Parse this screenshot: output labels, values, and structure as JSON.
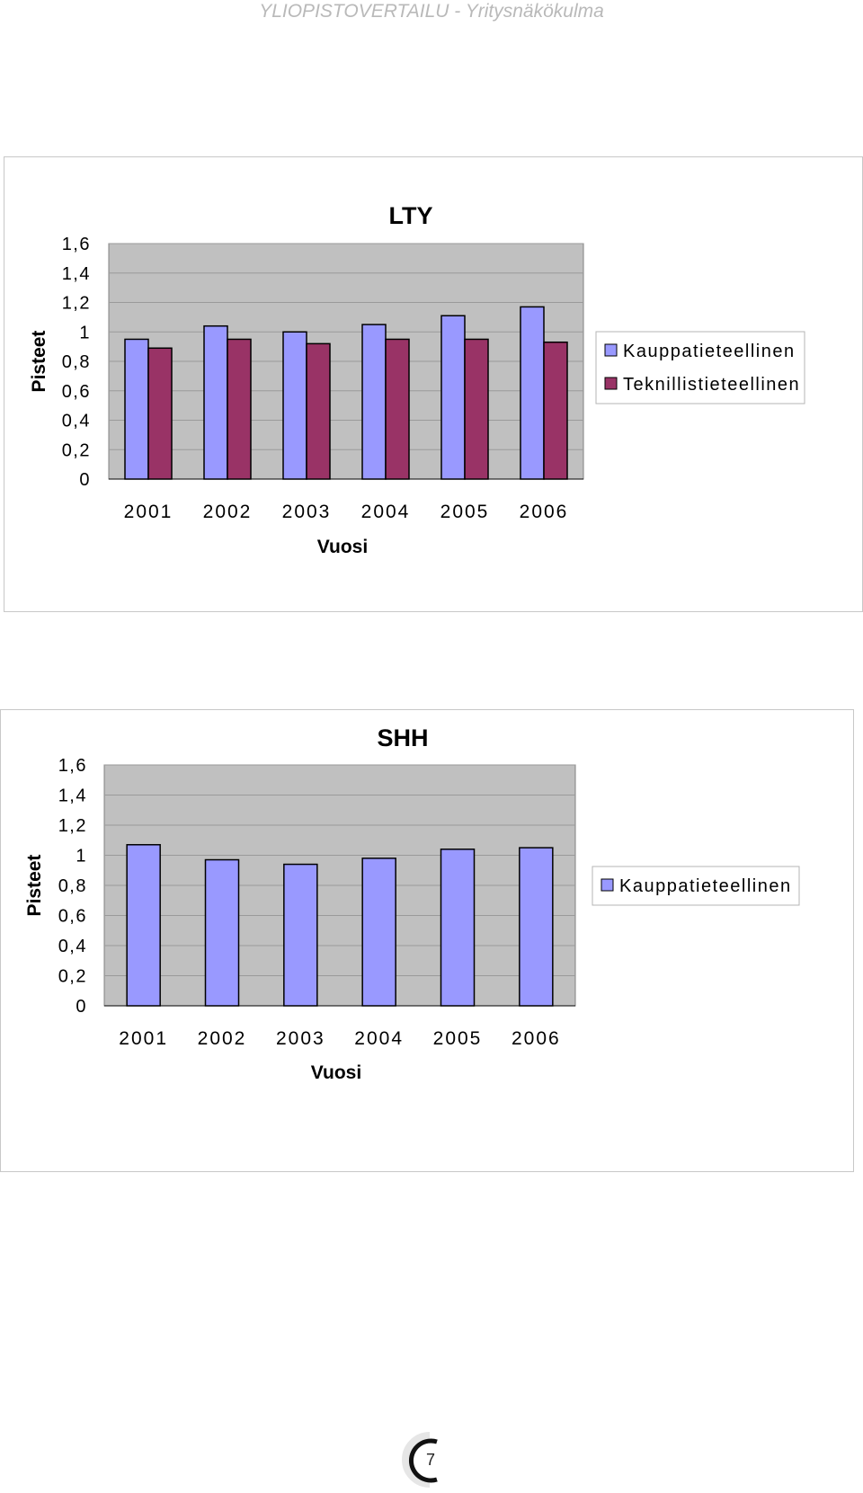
{
  "header": {
    "text": "YLIOPISTOVERTAILU - Yritysnäkökulma"
  },
  "page_number": "7",
  "colors": {
    "series_kauppa": "#9999ff",
    "series_teknillis": "#993366",
    "plot_background": "#c0c0c0",
    "gridline": "#9a9a9a"
  },
  "chart_data": [
    {
      "type": "bar",
      "title": "LTY",
      "xlabel": "Vuosi",
      "ylabel": "Pisteet",
      "categories": [
        "2001",
        "2002",
        "2003",
        "2004",
        "2005",
        "2006"
      ],
      "ylim": [
        0,
        1.6
      ],
      "yticks": [
        "0",
        "0,2",
        "0,4",
        "0,6",
        "0,8",
        "1",
        "1,2",
        "1,4",
        "1,6"
      ],
      "grid": true,
      "legend_position": "right",
      "series": [
        {
          "name": "Kauppatieteellinen",
          "values": [
            0.95,
            1.04,
            1.0,
            1.05,
            1.11,
            1.17
          ]
        },
        {
          "name": "Teknillistieteellinen",
          "values": [
            0.89,
            0.95,
            0.92,
            0.95,
            0.95,
            0.93
          ]
        }
      ]
    },
    {
      "type": "bar",
      "title": "SHH",
      "xlabel": "Vuosi",
      "ylabel": "Pisteet",
      "categories": [
        "2001",
        "2002",
        "2003",
        "2004",
        "2005",
        "2006"
      ],
      "ylim": [
        0,
        1.6
      ],
      "yticks": [
        "0",
        "0,2",
        "0,4",
        "0,6",
        "0,8",
        "1",
        "1,2",
        "1,4",
        "1,6"
      ],
      "grid": true,
      "legend_position": "right",
      "series": [
        {
          "name": "Kauppatieteellinen",
          "values": [
            1.07,
            0.97,
            0.94,
            0.98,
            1.04,
            1.05
          ]
        }
      ]
    }
  ]
}
